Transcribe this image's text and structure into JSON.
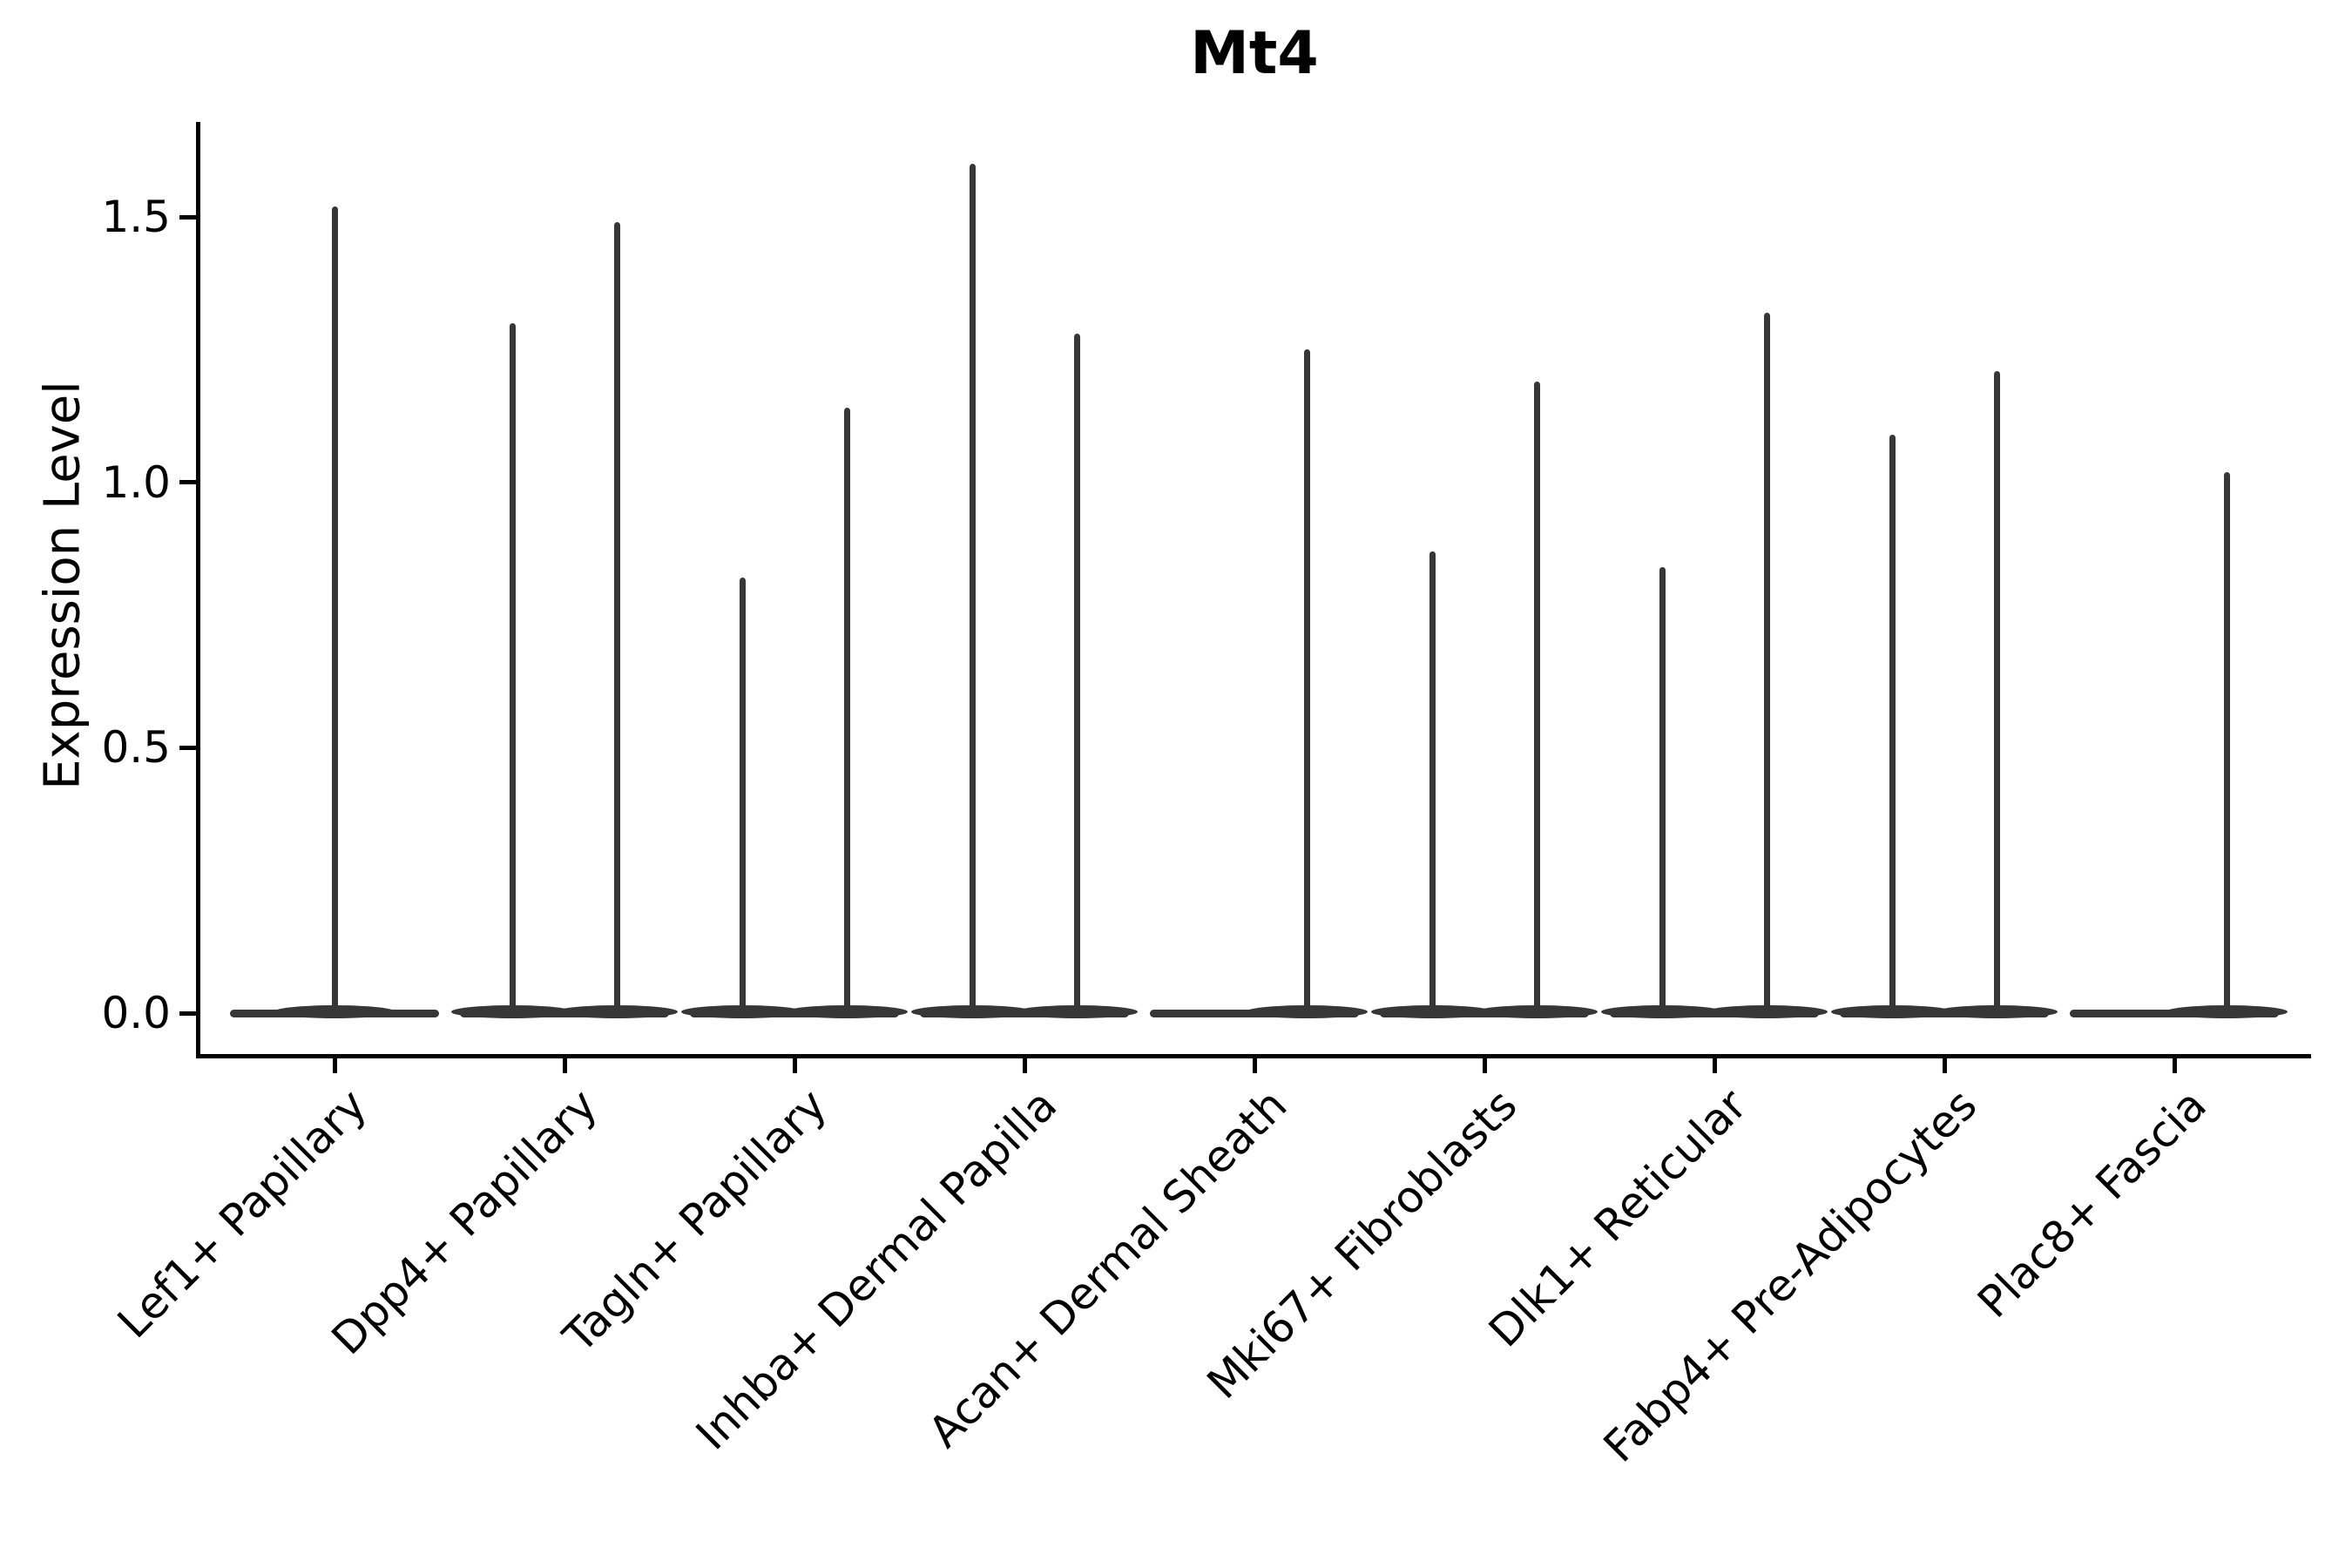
{
  "title": "Mt4",
  "chart_data": {
    "type": "violin",
    "title": "Mt4",
    "ylabel": "Expression Level",
    "xlabel": "",
    "ylim": [
      -0.08,
      1.68
    ],
    "grid": false,
    "legend": "none",
    "yticks": [
      {
        "label": "0.0",
        "value": 0.0
      },
      {
        "label": "0.5",
        "value": 0.5
      },
      {
        "label": "1.0",
        "value": 1.0
      },
      {
        "label": "1.5",
        "value": 1.5
      }
    ],
    "categories": [
      "Lef1+ Papillary",
      "Dpp4+ Papillary",
      "Tagln+ Papillary",
      "Inhba+ Dermal Papilla",
      "Acan+ Dermal Sheath",
      "Mki67+ Fibroblasts",
      "Dlk1+ Reticular",
      "Fabp4+ Pre-Adipocytes",
      "Plac8+ Fascia"
    ],
    "series": [
      {
        "category": "Lef1+ Papillary",
        "violins": [
          {
            "slot": "center",
            "max": 1.52
          }
        ]
      },
      {
        "category": "Dpp4+ Papillary",
        "violins": [
          {
            "slot": "left",
            "max": 1.3
          },
          {
            "slot": "right",
            "max": 1.49
          }
        ]
      },
      {
        "category": "Tagln+ Papillary",
        "violins": [
          {
            "slot": "left",
            "max": 0.82
          },
          {
            "slot": "right",
            "max": 1.14
          }
        ]
      },
      {
        "category": "Inhba+ Dermal Papilla",
        "violins": [
          {
            "slot": "left",
            "max": 1.6
          },
          {
            "slot": "right",
            "max": 1.28
          }
        ]
      },
      {
        "category": "Acan+ Dermal Sheath",
        "violins": [
          {
            "slot": "right",
            "max": 1.25
          }
        ]
      },
      {
        "category": "Mki67+ Fibroblasts",
        "violins": [
          {
            "slot": "left",
            "max": 0.87
          },
          {
            "slot": "right",
            "max": 1.19
          }
        ]
      },
      {
        "category": "Dlk1+ Reticular",
        "violins": [
          {
            "slot": "left",
            "max": 0.84
          },
          {
            "slot": "right",
            "max": 1.32
          }
        ]
      },
      {
        "category": "Fabp4+ Pre-Adipocytes",
        "violins": [
          {
            "slot": "left",
            "max": 1.09
          },
          {
            "slot": "right",
            "max": 1.21
          }
        ]
      },
      {
        "category": "Plac8+ Fascia",
        "violins": [
          {
            "slot": "right",
            "max": 1.02
          }
        ]
      }
    ],
    "baseline_value": 0.0,
    "violin_color": "#373737",
    "axis_color": "#000000"
  }
}
